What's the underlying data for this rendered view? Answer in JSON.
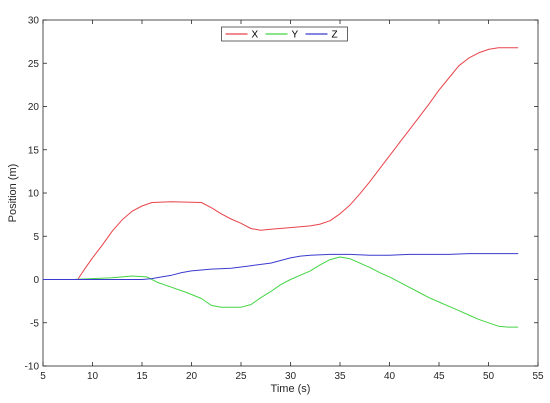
{
  "chart_data": {
    "type": "line",
    "title": "",
    "xlabel": "Time (s)",
    "ylabel": "Position (m)",
    "xlim": [
      5,
      55
    ],
    "ylim": [
      -10,
      30
    ],
    "xticks": [
      5,
      10,
      15,
      20,
      25,
      30,
      35,
      40,
      45,
      50,
      55
    ],
    "yticks": [
      -10,
      -5,
      0,
      5,
      10,
      15,
      20,
      25,
      30
    ],
    "grid": false,
    "legend": {
      "position": "top-center",
      "orientation": "horizontal"
    },
    "series": [
      {
        "name": "X",
        "color": "#e8434a",
        "points": [
          [
            5,
            0
          ],
          [
            8.5,
            0
          ],
          [
            9.2,
            1.2
          ],
          [
            10,
            2.5
          ],
          [
            11,
            4
          ],
          [
            12,
            5.6
          ],
          [
            13,
            6.9
          ],
          [
            14,
            7.9
          ],
          [
            15,
            8.5
          ],
          [
            16,
            8.9
          ],
          [
            18,
            9.0
          ],
          [
            21,
            8.9
          ],
          [
            22,
            8.3
          ],
          [
            23,
            7.6
          ],
          [
            24,
            7.0
          ],
          [
            25,
            6.5
          ],
          [
            26,
            5.9
          ],
          [
            27,
            5.7
          ],
          [
            28,
            5.8
          ],
          [
            30,
            6.0
          ],
          [
            32,
            6.2
          ],
          [
            33,
            6.4
          ],
          [
            34,
            6.8
          ],
          [
            35,
            7.6
          ],
          [
            36,
            8.6
          ],
          [
            37,
            9.9
          ],
          [
            38,
            11.3
          ],
          [
            39,
            12.8
          ],
          [
            40,
            14.3
          ],
          [
            41,
            15.8
          ],
          [
            42,
            17.3
          ],
          [
            43,
            18.8
          ],
          [
            44,
            20.3
          ],
          [
            45,
            21.9
          ],
          [
            46,
            23.3
          ],
          [
            47,
            24.7
          ],
          [
            48,
            25.6
          ],
          [
            49,
            26.2
          ],
          [
            50,
            26.6
          ],
          [
            51,
            26.8
          ],
          [
            53,
            26.8
          ]
        ]
      },
      {
        "name": "Y",
        "color": "#44d444",
        "points": [
          [
            5,
            0
          ],
          [
            8,
            0
          ],
          [
            10,
            0.1
          ],
          [
            12,
            0.2
          ],
          [
            14,
            0.4
          ],
          [
            15.5,
            0.3
          ],
          [
            16.5,
            -0.3
          ],
          [
            18,
            -0.9
          ],
          [
            19.5,
            -1.5
          ],
          [
            21,
            -2.2
          ],
          [
            22,
            -3.0
          ],
          [
            23,
            -3.2
          ],
          [
            25,
            -3.2
          ],
          [
            26,
            -2.9
          ],
          [
            27,
            -2.1
          ],
          [
            28,
            -1.4
          ],
          [
            29,
            -0.6
          ],
          [
            30,
            0.0
          ],
          [
            31,
            0.5
          ],
          [
            32,
            1.0
          ],
          [
            33,
            1.7
          ],
          [
            34,
            2.3
          ],
          [
            35,
            2.6
          ],
          [
            36,
            2.4
          ],
          [
            37,
            1.9
          ],
          [
            38,
            1.4
          ],
          [
            39,
            0.8
          ],
          [
            40,
            0.3
          ],
          [
            41,
            -0.3
          ],
          [
            42,
            -0.9
          ],
          [
            43,
            -1.5
          ],
          [
            44,
            -2.1
          ],
          [
            45,
            -2.6
          ],
          [
            46,
            -3.1
          ],
          [
            47,
            -3.6
          ],
          [
            48,
            -4.1
          ],
          [
            49,
            -4.6
          ],
          [
            50,
            -5.0
          ],
          [
            51,
            -5.4
          ],
          [
            52,
            -5.5
          ],
          [
            53,
            -5.5
          ]
        ]
      },
      {
        "name": "Z",
        "color": "#3b3bd0",
        "points": [
          [
            5,
            0
          ],
          [
            15,
            0
          ],
          [
            16,
            0.1
          ],
          [
            17,
            0.3
          ],
          [
            18,
            0.5
          ],
          [
            19,
            0.8
          ],
          [
            20,
            1.0
          ],
          [
            22,
            1.2
          ],
          [
            24,
            1.3
          ],
          [
            26,
            1.6
          ],
          [
            28,
            1.9
          ],
          [
            29,
            2.2
          ],
          [
            30,
            2.5
          ],
          [
            31,
            2.7
          ],
          [
            32,
            2.8
          ],
          [
            34,
            2.9
          ],
          [
            36,
            2.9
          ],
          [
            38,
            2.8
          ],
          [
            40,
            2.8
          ],
          [
            42,
            2.9
          ],
          [
            44,
            2.9
          ],
          [
            46,
            2.9
          ],
          [
            48,
            3.0
          ],
          [
            50,
            3.0
          ],
          [
            53,
            3.0
          ]
        ]
      }
    ]
  }
}
